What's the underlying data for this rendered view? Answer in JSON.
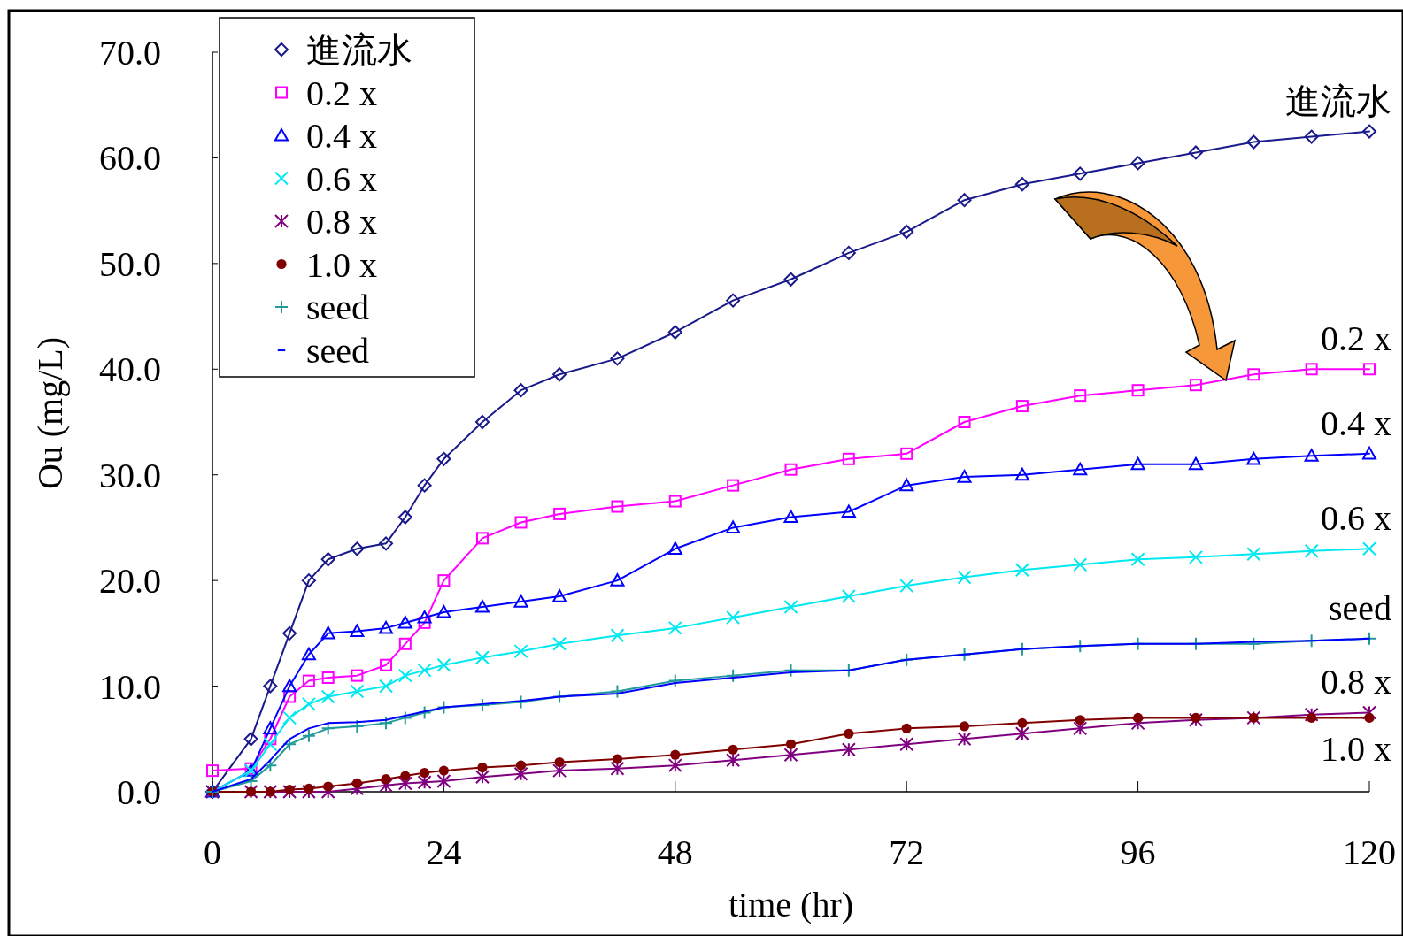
{
  "chart_data": {
    "type": "line",
    "xlabel": "time (hr)",
    "ylabel": "Ou (mg/L)",
    "xlim": [
      0,
      120
    ],
    "ylim": [
      0,
      70
    ],
    "xticks": [
      0,
      24,
      48,
      72,
      96,
      120
    ],
    "yticks": [
      {
        "value": 0,
        "label": "0.0"
      },
      {
        "value": 10,
        "label": "10.0"
      },
      {
        "value": 20,
        "label": "20.0"
      },
      {
        "value": 30,
        "label": "30.0"
      },
      {
        "value": 40,
        "label": "40.0"
      },
      {
        "value": 50,
        "label": "50.0"
      },
      {
        "value": 60,
        "label": "60.0"
      },
      {
        "value": 70,
        "label": "70.0"
      }
    ],
    "grid": false,
    "legend": "top left",
    "x": [
      0,
      4,
      6,
      8,
      10,
      12,
      15,
      18,
      20,
      22,
      24,
      28,
      32,
      36,
      42,
      48,
      54,
      60,
      66,
      72,
      78,
      84,
      90,
      96,
      102,
      108,
      114,
      120
    ],
    "series": [
      {
        "name": "進流水",
        "color": "#1a1a8c",
        "marker": "diamond",
        "values": [
          0,
          5,
          10,
          15,
          20,
          22,
          23,
          23.5,
          26,
          29,
          31.5,
          35,
          38,
          39.5,
          41,
          43.5,
          46.5,
          48.5,
          51,
          53,
          56,
          57.5,
          58.5,
          59.5,
          60.5,
          61.5,
          62,
          62.5
        ]
      },
      {
        "name": "0.2 x",
        "color": "#ff00ff",
        "marker": "square",
        "values": [
          2,
          2.2,
          5,
          9,
          10.5,
          10.8,
          11,
          12,
          14,
          16,
          20,
          24,
          25.5,
          26.3,
          27,
          27.5,
          29,
          30.5,
          31.5,
          32,
          35,
          36.5,
          37.5,
          38,
          38.5,
          39.5,
          40,
          40
        ]
      },
      {
        "name": "0.4 x",
        "color": "#0000ff",
        "marker": "triangle",
        "values": [
          0,
          2,
          6,
          10,
          13,
          15,
          15.2,
          15.5,
          16,
          16.5,
          17,
          17.5,
          18,
          18.5,
          20,
          23,
          25,
          26,
          26.5,
          29,
          29.8,
          30,
          30.5,
          31,
          31,
          31.5,
          31.8,
          32
        ]
      },
      {
        "name": "0.6 x",
        "color": "#00e8f0",
        "marker": "x",
        "values": [
          0,
          2,
          4.5,
          7,
          8.3,
          9,
          9.5,
          10,
          11,
          11.5,
          12,
          12.7,
          13.3,
          14,
          14.8,
          15.5,
          16.5,
          17.5,
          18.5,
          19.5,
          20.3,
          21,
          21.5,
          22,
          22.2,
          22.5,
          22.8,
          23
        ]
      },
      {
        "name": "0.8 x",
        "color": "#800080",
        "marker": "cross",
        "values": [
          0,
          0,
          0,
          0,
          0,
          0,
          0.3,
          0.6,
          0.8,
          0.9,
          1,
          1.4,
          1.7,
          2,
          2.2,
          2.5,
          3,
          3.5,
          4,
          4.5,
          5,
          5.5,
          6,
          6.5,
          6.8,
          7,
          7.3,
          7.5
        ]
      },
      {
        "name": "1.0 x",
        "color": "#800000",
        "marker": "circle",
        "values": [
          0,
          0,
          0,
          0.2,
          0.3,
          0.5,
          0.8,
          1.2,
          1.5,
          1.8,
          2,
          2.3,
          2.5,
          2.8,
          3.1,
          3.5,
          4,
          4.5,
          5.5,
          6,
          6.2,
          6.5,
          6.8,
          7,
          7,
          7,
          7,
          7
        ]
      },
      {
        "name": "seed",
        "color": "#209a9a",
        "marker": "plus",
        "values": [
          0,
          1,
          2.5,
          4.5,
          5.3,
          6,
          6.2,
          6.5,
          7,
          7.5,
          8,
          8.2,
          8.5,
          9,
          9.5,
          10.5,
          11,
          11.5,
          11.5,
          12.5,
          13,
          13.5,
          13.8,
          14,
          14,
          14,
          14.3,
          14.5
        ]
      },
      {
        "name": "seed",
        "color": "#0000ff",
        "marker": "none",
        "values": [
          0,
          1.2,
          3,
          5,
          6,
          6.5,
          6.6,
          6.8,
          7.2,
          7.6,
          8,
          8.3,
          8.6,
          9,
          9.3,
          10.3,
          10.8,
          11.3,
          11.5,
          12.5,
          13,
          13.5,
          13.8,
          14,
          14,
          14.2,
          14.3,
          14.5
        ]
      }
    ],
    "annotations": [
      "進流水",
      "0.2 x",
      "0.4 x",
      "0.6 x",
      "0.8 x",
      "1.0 x",
      "seed"
    ]
  }
}
